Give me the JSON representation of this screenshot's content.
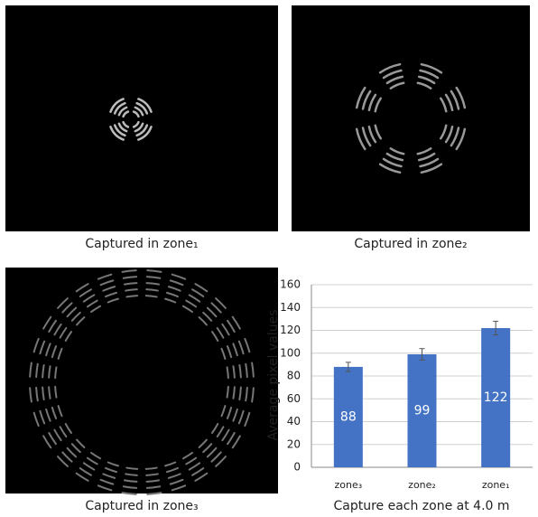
{
  "panels": [
    {
      "caption": "Captured in zone₁"
    },
    {
      "caption": "Captured in zone₂"
    },
    {
      "caption": "Captured in zone₃"
    }
  ],
  "chart_data": {
    "type": "bar",
    "categories": [
      "zone₃",
      "zone₂",
      "zone₁"
    ],
    "values": [
      88,
      99,
      122
    ],
    "errors": [
      4,
      5,
      6
    ],
    "color": "#4472c4",
    "ylabel": "Average pixel values",
    "xlabel": "Capture each zone at 4.0 m",
    "ylim": [
      0,
      160
    ],
    "yticks": [
      0,
      20,
      40,
      60,
      80,
      100,
      120,
      140,
      160
    ],
    "grid": true
  }
}
